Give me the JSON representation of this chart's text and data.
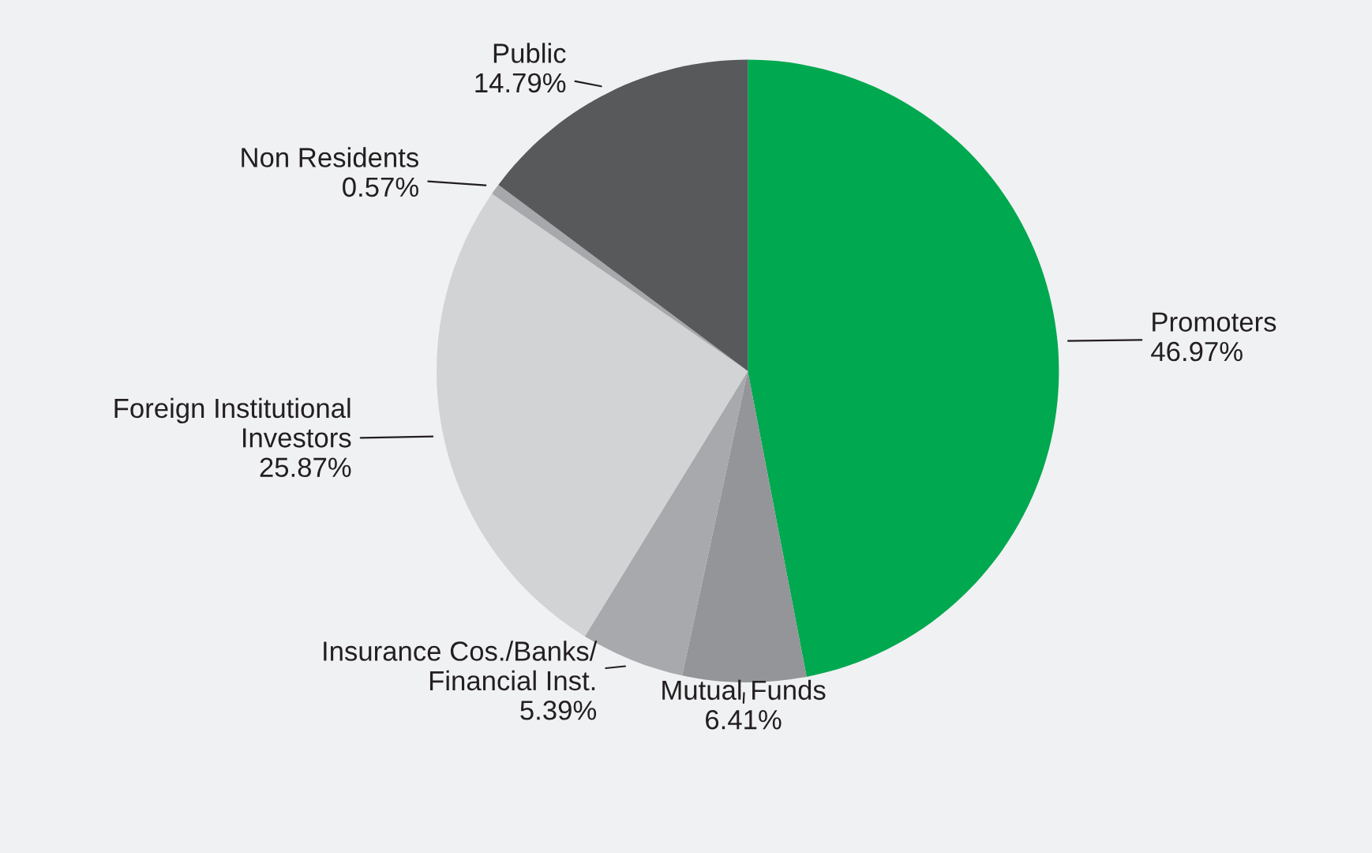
{
  "chart_data": {
    "type": "pie",
    "categories": [
      "Promoters",
      "Mutual Funds",
      "Insurance Cos./Banks/\nFinancial Inst.",
      "Foreign Institutional\nInvestors",
      "Non Residents",
      "Public"
    ],
    "values": [
      46.97,
      6.41,
      5.39,
      25.87,
      0.57,
      14.79
    ],
    "value_labels": [
      "46.97%",
      "6.41%",
      "5.39%",
      "25.87%",
      "0.57%",
      "14.79%"
    ],
    "colors": [
      "#00a84f",
      "#939598",
      "#a7a9ac",
      "#d1d3d4",
      "#a6a8ab",
      "#58595b"
    ]
  }
}
